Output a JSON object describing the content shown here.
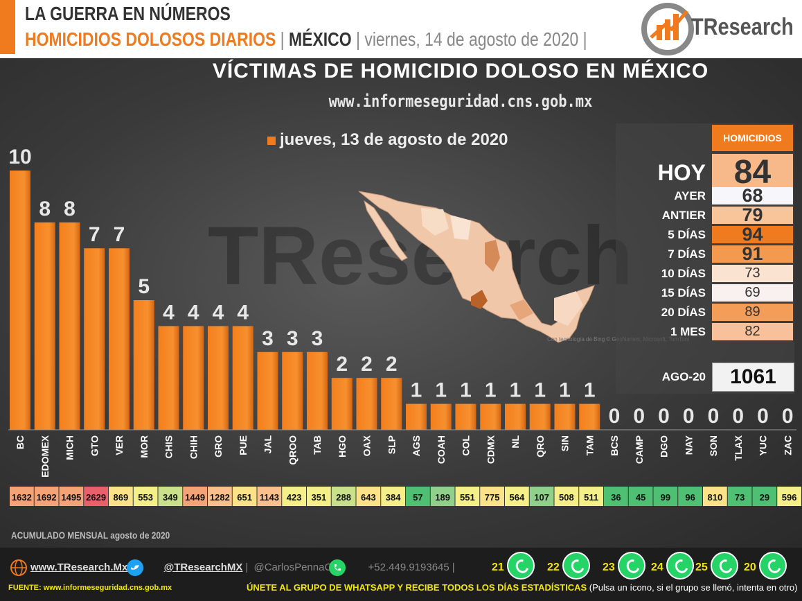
{
  "header": {
    "line1": "LA GUERRA EN NÚMEROS",
    "line2_a": "HOMICIDIOS DOLOSOS DIARIOS",
    "sep1": " | ",
    "line2_b": "MÉXICO",
    "sep2": " | ",
    "line2_c": "viernes, 14 de agosto de 2020",
    "sep3": " |",
    "logo": "TResearch"
  },
  "chart_data": {
    "type": "bar",
    "title": "VÍCTIMAS DE HOMICIDIO DOLOSO EN MÉXICO",
    "subtitle": "www.informeseguridad.cns.gob.mx",
    "series": [
      {
        "name": "jueves, 13 de agosto de 2020",
        "values": [
          10,
          8,
          8,
          7,
          7,
          5,
          4,
          4,
          4,
          4,
          3,
          3,
          3,
          2,
          2,
          2,
          1,
          1,
          1,
          1,
          1,
          1,
          1,
          1,
          0,
          0,
          0,
          0,
          0,
          0,
          0,
          0
        ]
      }
    ],
    "categories": [
      "BC",
      "EDOMEX",
      "MICH",
      "GTO",
      "VER",
      "MOR",
      "CHIS",
      "CHIH",
      "GRO",
      "PUE",
      "JAL",
      "QROO",
      "TAB",
      "HGO",
      "OAX",
      "SLP",
      "AGS",
      "COAH",
      "COL",
      "CDMX",
      "NL",
      "QRO",
      "SIN",
      "TAM",
      "BCS",
      "CAMP",
      "DGO",
      "NAY",
      "SON",
      "TLAX",
      "YUC",
      "ZAC"
    ],
    "monthly_accumulated": [
      1632,
      1692,
      1495,
      2629,
      869,
      553,
      349,
      1449,
      1282,
      651,
      1143,
      423,
      351,
      288,
      643,
      384,
      57,
      189,
      551,
      775,
      564,
      107,
      508,
      511,
      36,
      45,
      99,
      96,
      810,
      73,
      29,
      596
    ],
    "monthly_label": "ACUMULADO MENSUAL agosto de 2020",
    "ylim": [
      0,
      10
    ],
    "bar_color": "#f07a1e"
  },
  "summary": {
    "header": "HOMICIDIOS",
    "rows": [
      {
        "label": "HOY",
        "value": "84",
        "color": "#f7b98a"
      },
      {
        "label": "AYER",
        "value": "68",
        "color": "#f7f7fb"
      },
      {
        "label": "ANTIER",
        "value": "79",
        "color": "#f8c59b"
      },
      {
        "label": "5 DÍAS",
        "value": "94",
        "color": "#f07a1e"
      },
      {
        "label": "7 DÍAS",
        "value": "91",
        "color": "#f39a4e"
      },
      {
        "label": "10 DÍAS",
        "value": "73",
        "color": "#fbe3d2"
      },
      {
        "label": "15 DÍAS",
        "value": "69",
        "color": "#f9f1ef"
      },
      {
        "label": "20 DÍAS",
        "value": "89",
        "color": "#f49d58"
      },
      {
        "label": "1 MES",
        "value": "82",
        "color": "#f8c19a"
      }
    ],
    "month_label": "AGO-20",
    "month_value": "1061"
  },
  "map_credit": "Con tecnología de Bing © GeoNames, Microsoft, TomTom",
  "footer": {
    "web": "www.TResearch.Mx",
    "twitter": "@TResearchMX",
    "twitter2": "@CarlosPennaC",
    "phone": "+52.449.9193645",
    "groups": [
      "21",
      "22",
      "23",
      "24",
      "25",
      "20"
    ],
    "source": "FUENTE: www.informeseguridad.cns.gob.mx",
    "whatsapp_text": "ÚNETE AL GRUPO DE WHATSAPP Y RECIBE TODOS LOS DÍAS ESTADÍSTICAS",
    "whatsapp_note": " (Pulsa un ícono, si el grupo se llenó, intenta en otro)"
  }
}
